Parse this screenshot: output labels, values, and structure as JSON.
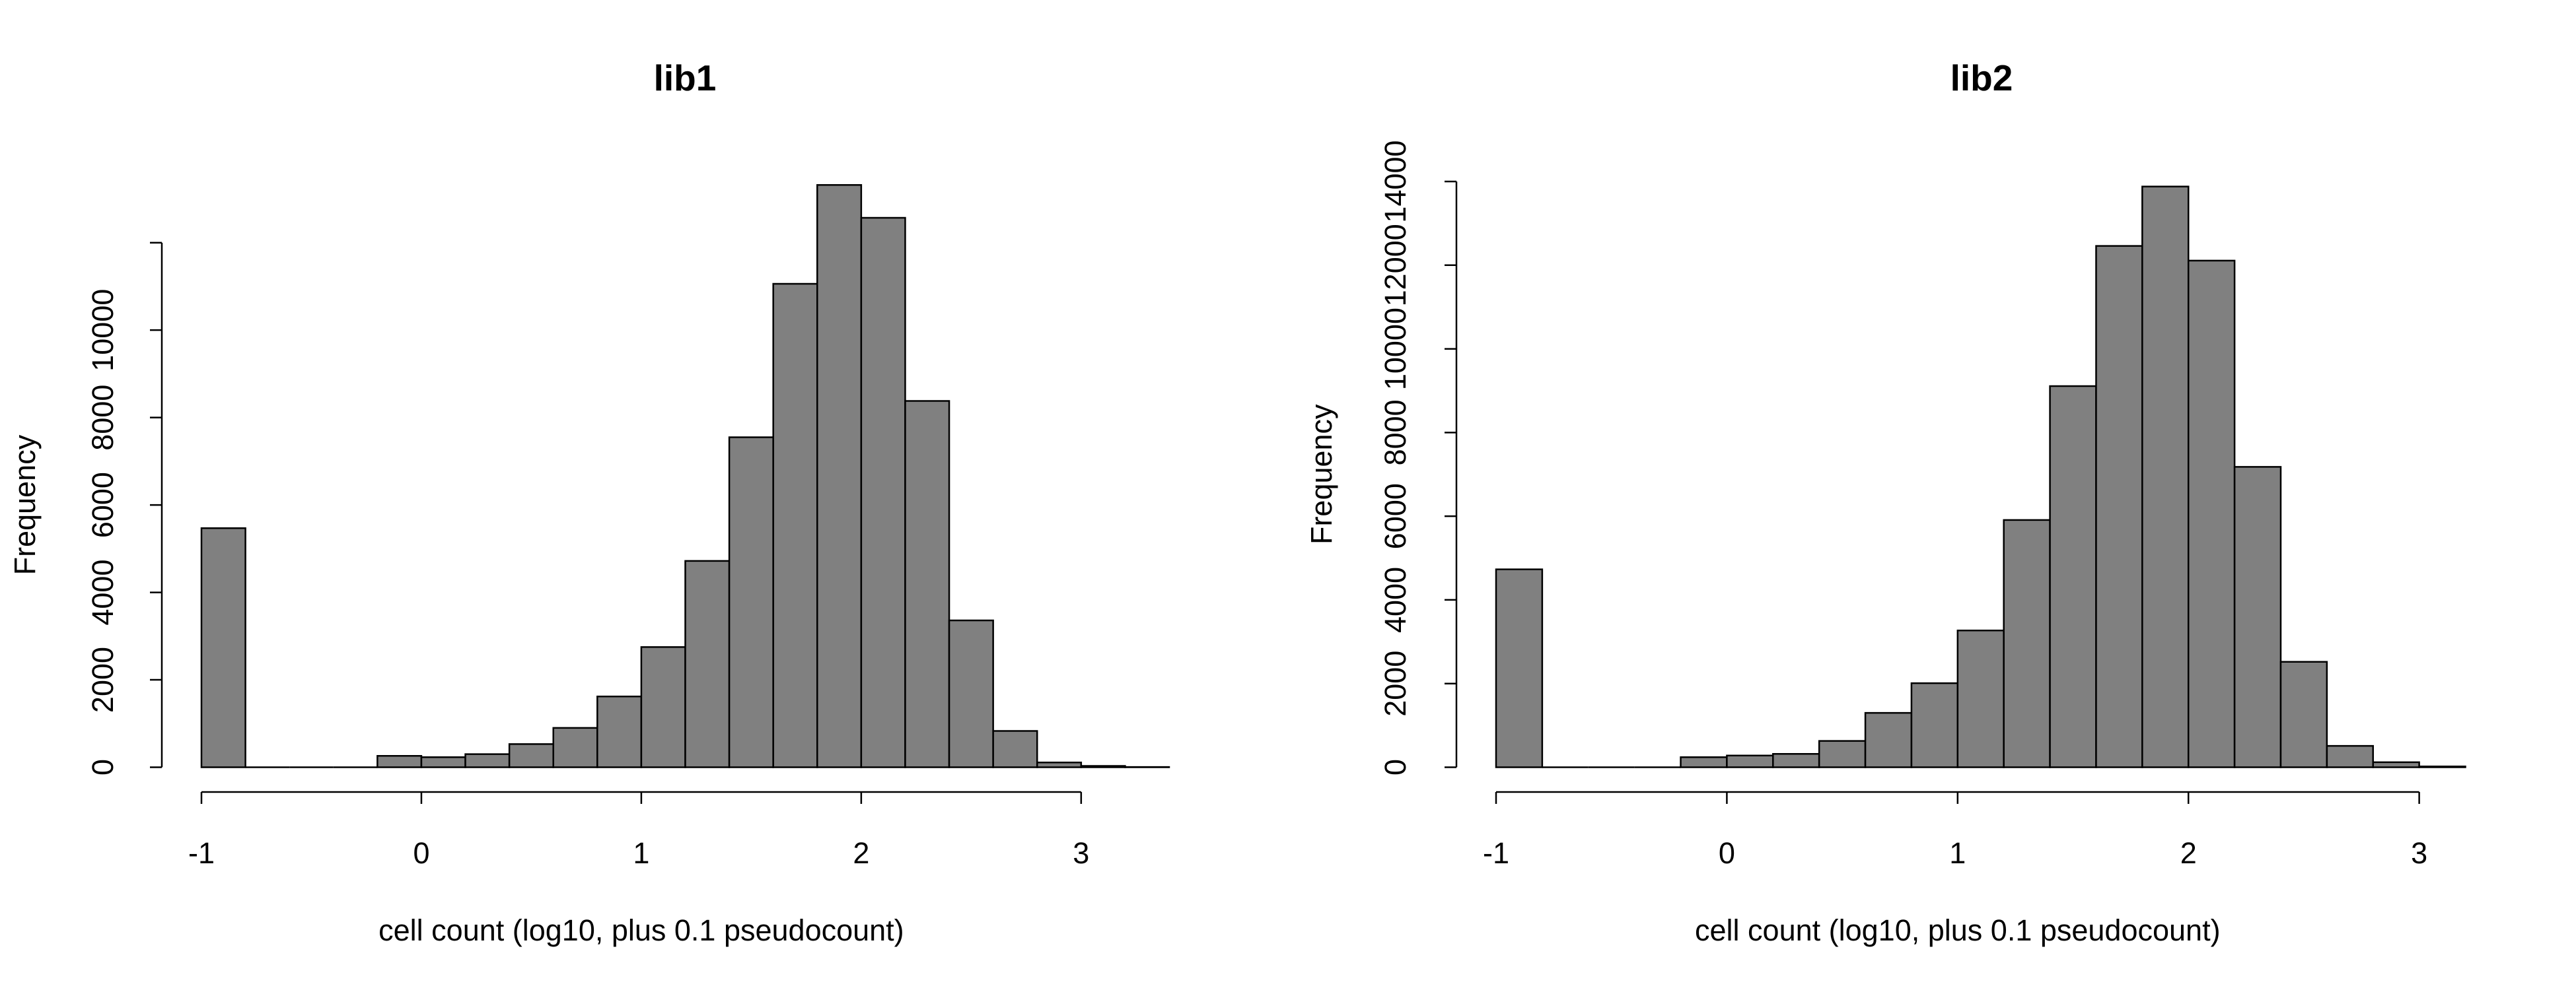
{
  "chart_data": [
    {
      "type": "histogram",
      "title": "lib1",
      "x_label": "cell count (log10, plus 0.1 pseudocount)",
      "y_label": "Frequency",
      "bins": [
        -1,
        -0.8,
        -0.6,
        -0.4,
        -0.2,
        0,
        0.2,
        0.4,
        0.6,
        0.8,
        1,
        1.2,
        1.4,
        1.6,
        1.8,
        2,
        2.2,
        2.4,
        2.6,
        2.8,
        3,
        3.2,
        3.4
      ],
      "values": [
        5470,
        0,
        0,
        0,
        260,
        230,
        300,
        530,
        900,
        1620,
        2750,
        4720,
        7550,
        11060,
        13320,
        12570,
        8380,
        3360,
        830,
        110,
        30,
        5
      ],
      "color": "#808080",
      "xlim": [
        -1,
        3.4
      ],
      "ylim": [
        0,
        13400
      ],
      "xticks": [
        -1,
        0,
        1,
        2,
        3
      ],
      "yticks": [
        0,
        2000,
        4000,
        6000,
        8000,
        10000,
        {
          "value": 12000,
          "label": null
        }
      ]
    },
    {
      "type": "histogram",
      "title": "lib2",
      "x_label": "cell count (log10, plus 0.1 pseudocount)",
      "y_label": "Frequency",
      "bins": [
        -1,
        -0.8,
        -0.6,
        -0.4,
        -0.2,
        0,
        0.2,
        0.4,
        0.6,
        0.8,
        1,
        1.2,
        1.4,
        1.6,
        1.8,
        2,
        2.2,
        2.4,
        2.6,
        2.8,
        3,
        3.2
      ],
      "values": [
        4730,
        0,
        0,
        0,
        240,
        280,
        320,
        630,
        1300,
        2010,
        3270,
        5910,
        9110,
        12460,
        13880,
        12110,
        7180,
        2520,
        510,
        120,
        20
      ],
      "color": "#808080",
      "xlim": [
        -1,
        3.2
      ],
      "ylim": [
        0,
        14000
      ],
      "xticks": [
        -1,
        0,
        1,
        2,
        3
      ],
      "yticks": [
        0,
        2000,
        4000,
        6000,
        8000,
        10000,
        12000,
        14000
      ]
    }
  ]
}
